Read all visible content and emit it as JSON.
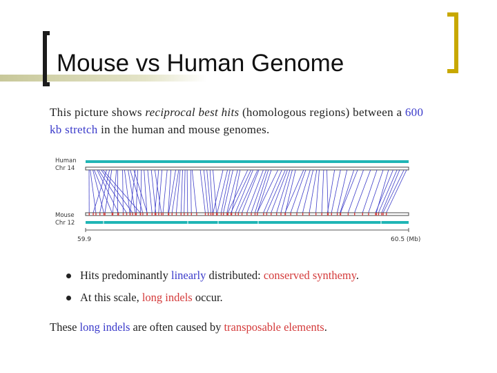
{
  "slide": {
    "title": "Mouse vs Human Genome"
  },
  "intro": {
    "part1": "This picture shows ",
    "part2_italic": "reciprocal best hits",
    "part3": " (homologous regions) between a ",
    "part4_blue": "600 kb stretch",
    "part5": " in the human and mouse genomes."
  },
  "diagram": {
    "human_label_line1": "Human",
    "human_label_line2": "Chr 14",
    "mouse_label_line1": "Mouse",
    "mouse_label_line2": "Chr 12",
    "scale_start": "59.9",
    "scale_end": "60.5 (Mb)",
    "colors": {
      "chromosome_bar": "#20b5b5",
      "hit_lines": "#3c3cc8",
      "hit_marks": "#d04040"
    }
  },
  "bullets": [
    {
      "text1": "Hits predominantly ",
      "text2_blue": "linearly",
      "text3": " distributed: ",
      "text4_red": "conserved synthemy",
      "text5": "."
    },
    {
      "text1": "At this scale, ",
      "text2_red": "long indels",
      "text3": " occur."
    }
  ],
  "footer": {
    "text1": "These ",
    "text2_blue": "long indels",
    "text3": " are often caused by ",
    "text4_red": "transposable elements",
    "text5": "."
  }
}
